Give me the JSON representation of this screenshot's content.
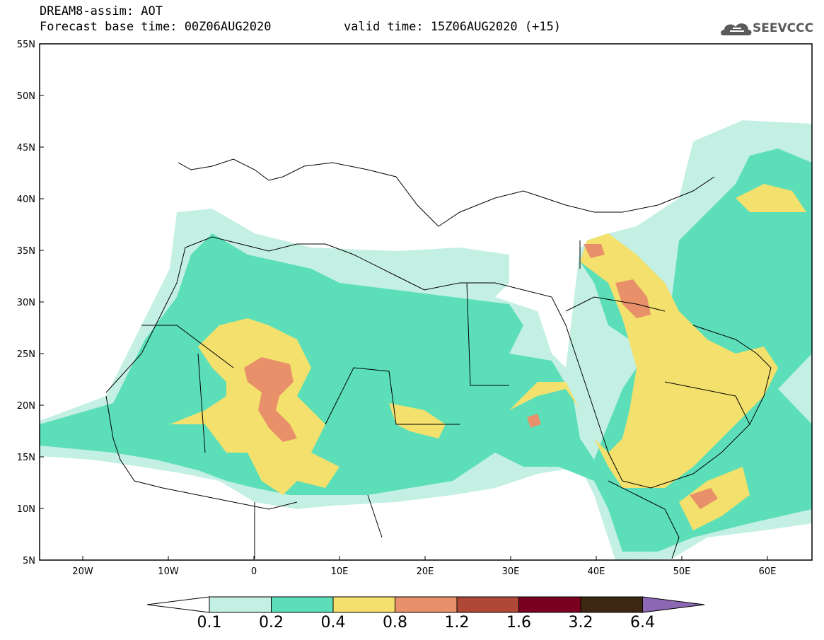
{
  "header": {
    "title": "DREAM8-assim: AOT",
    "base_time": "Forecast base time: 00Z06AUG2020",
    "valid_time": "valid time: 15Z06AUG2020 (+15)",
    "logo_text": "SEEVCCC"
  },
  "map": {
    "region": "North Africa, Middle East, Europe",
    "lat_range": [
      5,
      55
    ],
    "lon_range": [
      -25,
      65
    ],
    "lat_labels": [
      "55N",
      "50N",
      "45N",
      "40N",
      "35N",
      "30N",
      "25N",
      "20N",
      "15N",
      "10N",
      "5N"
    ],
    "lon_labels": [
      "20W",
      "10W",
      "0",
      "10E",
      "20E",
      "30E",
      "40E",
      "50E",
      "60E"
    ]
  },
  "colorbar": {
    "labels": [
      "0.1",
      "0.2",
      "0.4",
      "0.8",
      "1.2",
      "1.6",
      "3.2",
      "6.4"
    ],
    "colors": [
      "#ffffff",
      "#c4f0e4",
      "#5cdfb8",
      "#f4e06c",
      "#e8906a",
      "#b04838",
      "#7a0020",
      "#3c2812",
      "#8c68b4"
    ]
  }
}
